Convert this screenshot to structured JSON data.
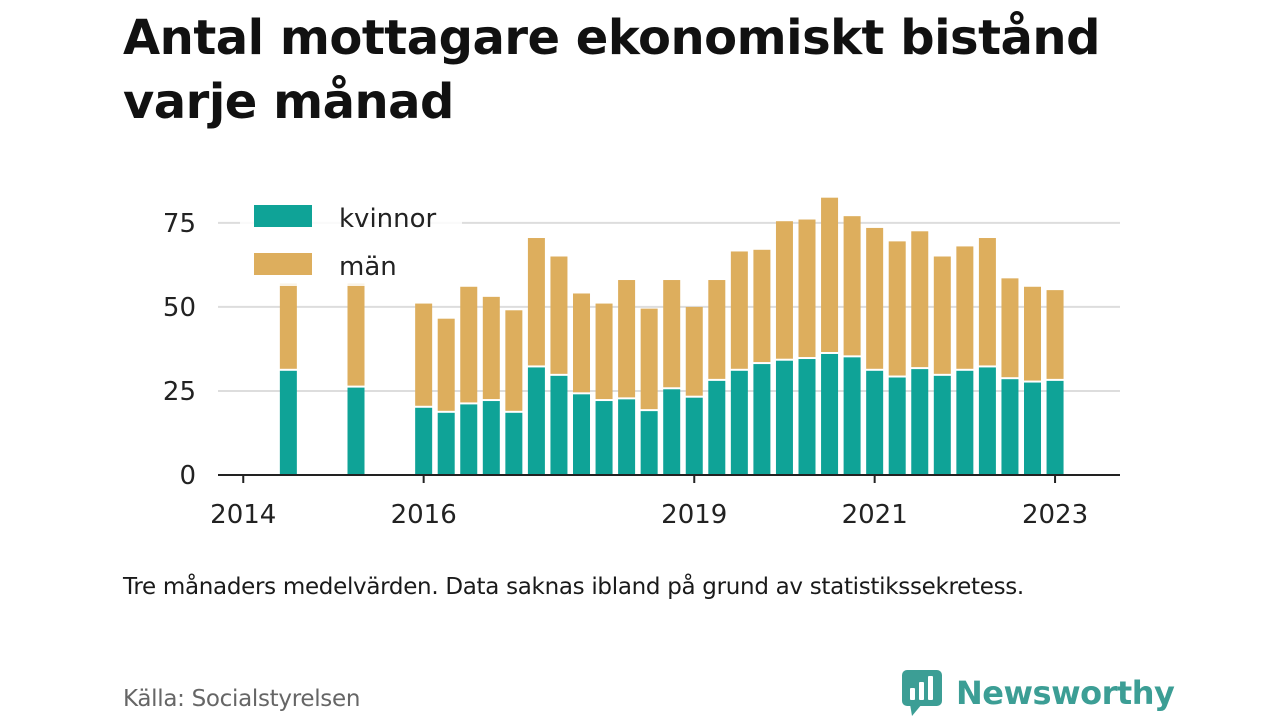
{
  "title": "Antal mottagare ekonomiskt bistånd varje månad",
  "note": "Tre månaders medelvärden. Data saknas ibland på grund av statistikssekretess.",
  "source": "Källa: Socialstyrelsen",
  "brand": {
    "name": "Newsworthy",
    "logo_icon": "chart-bubble-icon"
  },
  "colors": {
    "kvinnor": "#0fa397",
    "man": "#ddae5d",
    "grid": "#dddddd",
    "axis": "#222222",
    "text": "#222222"
  },
  "chart_data": {
    "type": "bar",
    "stacked": true,
    "title": "Antal mottagare ekonomiskt bistånd varje månad",
    "xlabel": "",
    "ylabel": "",
    "ylim": [
      0,
      83
    ],
    "yticks": [
      0,
      25,
      50,
      75
    ],
    "xlim": [
      2013.72,
      2023.72
    ],
    "xticks": [
      2014,
      2016,
      2019,
      2021,
      2023
    ],
    "legend": {
      "position": "top-left",
      "entries": [
        "kvinnor",
        "män"
      ]
    },
    "grid": true,
    "x": [
      2014.5,
      2015.25,
      2016,
      2016.25,
      2016.5,
      2016.75,
      2017,
      2017.25,
      2017.5,
      2017.75,
      2018,
      2018.25,
      2018.5,
      2018.75,
      2019,
      2019.25,
      2019.5,
      2019.75,
      2020,
      2020.25,
      2020.5,
      2020.75,
      2021,
      2021.25,
      2021.5,
      2021.75,
      2022,
      2022.25,
      2022.5,
      2022.75,
      2023,
      2023.25
    ],
    "series": [
      {
        "name": "kvinnor",
        "values": [
          31,
          26,
          20,
          18.5,
          21,
          22,
          18.5,
          32,
          29.5,
          24,
          22,
          22.5,
          19,
          25.5,
          23,
          28,
          31,
          33,
          34,
          34.5,
          36,
          35,
          31,
          29,
          31.5,
          29.5,
          31,
          32,
          28.5,
          27.5,
          28,
          null
        ]
      },
      {
        "name": "män",
        "values": [
          26,
          31,
          31,
          28,
          35,
          31,
          30.5,
          38.5,
          35.5,
          30,
          29,
          35.5,
          30.5,
          32.5,
          27,
          30,
          35.5,
          34,
          41.5,
          41.5,
          46.5,
          42,
          42.5,
          40.5,
          41,
          35.5,
          37,
          38.5,
          30,
          28.5,
          27,
          null
        ]
      }
    ]
  }
}
